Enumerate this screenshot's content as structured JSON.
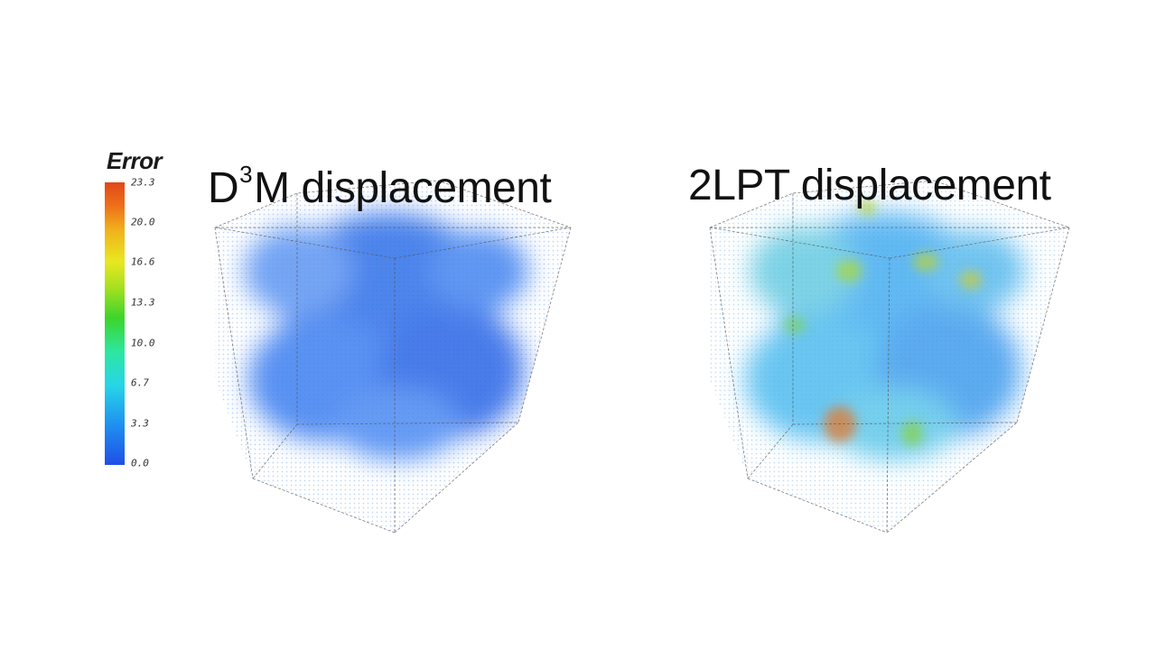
{
  "colorbar": {
    "title": "Error",
    "ticks": [
      "23.3",
      "20.0",
      "16.6",
      "13.3",
      "10.0",
      "6.7",
      "3.3",
      "0.0"
    ],
    "min": 0.0,
    "max": 23.3,
    "colors": [
      "#1f4fe8",
      "#26d5e8",
      "#3cd52a",
      "#e8e820",
      "#e04818"
    ]
  },
  "panels": {
    "left": {
      "title_prefix": "D",
      "title_sup": "3",
      "title_suffix": "M displacement",
      "dominant_color": "#2f6fe8"
    },
    "right": {
      "title": "2LPT displacement",
      "dominant_color": "#3aa8f0"
    }
  }
}
